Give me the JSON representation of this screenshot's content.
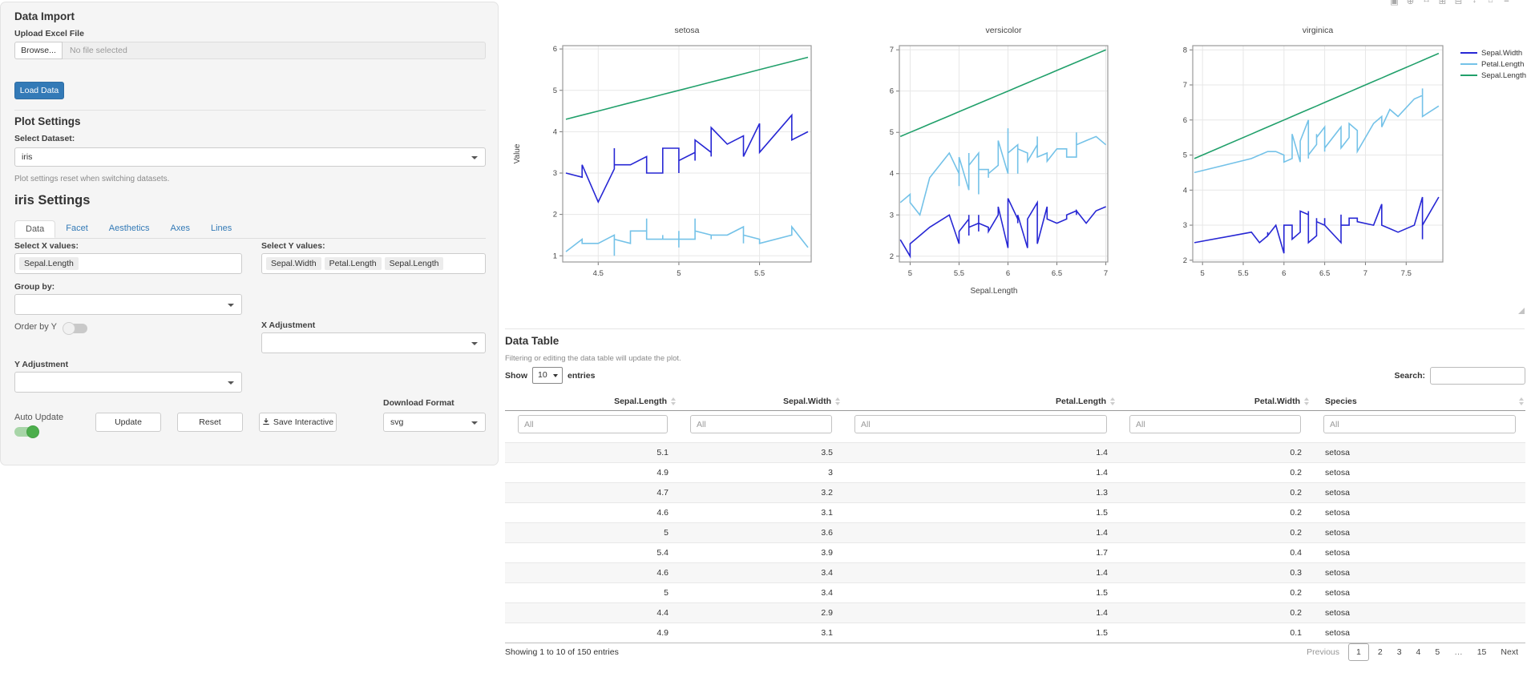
{
  "sidebar": {
    "data_import": {
      "title": "Data Import",
      "upload_label": "Upload Excel File",
      "browse_button": "Browse...",
      "file_status": "No file selected",
      "load_button": "Load Data"
    },
    "plot_settings": {
      "title": "Plot Settings",
      "dataset_label": "Select Dataset:",
      "dataset_value": "iris",
      "hint": "Plot settings reset when switching datasets."
    },
    "settings_panel": {
      "title": "iris Settings",
      "tabs": [
        "Data",
        "Facet",
        "Aesthetics",
        "Axes",
        "Lines"
      ],
      "active_tab": "Data",
      "select_x_label": "Select X values:",
      "x_values": [
        "Sepal.Length"
      ],
      "select_y_label": "Select Y values:",
      "y_values": [
        "Sepal.Width",
        "Petal.Length",
        "Sepal.Length"
      ],
      "group_by_label": "Group by:",
      "group_by_value": "",
      "order_by_y_label": "Order by Y",
      "order_by_y_on": false,
      "x_adjustment_label": "X Adjustment",
      "x_adjustment_value": "",
      "y_adjustment_label": "Y Adjustment",
      "y_adjustment_value": "",
      "auto_update_label": "Auto Update",
      "auto_update_on": true,
      "update_button": "Update",
      "reset_button": "Reset",
      "save_button": "Save Interactive",
      "download_format_label": "Download Format",
      "download_format_value": "svg"
    }
  },
  "modebar_icons": [
    {
      "name": "camera-icon",
      "glyph": "▣"
    },
    {
      "name": "zoom-icon",
      "glyph": "⊕"
    },
    {
      "name": "pan-icon",
      "glyph": "↔"
    },
    {
      "name": "zoom-in-icon",
      "glyph": "⊞"
    },
    {
      "name": "zoom-out-icon",
      "glyph": "⊟"
    },
    {
      "name": "autoscale-icon",
      "glyph": "↕"
    },
    {
      "name": "reset-axes-icon",
      "glyph": "⌂"
    },
    {
      "name": "plotly-logo-icon",
      "glyph": "≡"
    }
  ],
  "chart_data": {
    "type": "line",
    "xlabel": "Sepal.Length",
    "ylabel": "Value",
    "grid": true,
    "legend_position": "right-outside-top",
    "facet_titles": [
      "setosa",
      "versicolor",
      "virginica"
    ],
    "point_columns": [
      "Sepal.Length",
      "Sepal.Width",
      "Petal.Length"
    ],
    "series": [
      {
        "name": "Sepal.Width",
        "color": "#2727d4",
        "col": 1
      },
      {
        "name": "Petal.Length",
        "color": "#74c2e8",
        "col": 2
      },
      {
        "name": "Sepal.Length",
        "color": "#21a06b",
        "col": 0
      }
    ],
    "facets": [
      {
        "title": "setosa",
        "x_range": [
          4.28,
          5.82
        ],
        "y_range": [
          0.85,
          6.08
        ],
        "x_ticks": [
          4.5,
          5,
          5.5
        ],
        "y_ticks": [
          1,
          2,
          3,
          4,
          5,
          6
        ],
        "points": [
          [
            5.1,
            3.5,
            1.4
          ],
          [
            4.9,
            3.0,
            1.4
          ],
          [
            4.7,
            3.2,
            1.3
          ],
          [
            4.6,
            3.1,
            1.5
          ],
          [
            5.0,
            3.6,
            1.4
          ],
          [
            5.4,
            3.9,
            1.7
          ],
          [
            4.6,
            3.4,
            1.4
          ],
          [
            5.0,
            3.4,
            1.5
          ],
          [
            4.4,
            2.9,
            1.4
          ],
          [
            4.9,
            3.1,
            1.5
          ],
          [
            5.4,
            3.7,
            1.5
          ],
          [
            4.8,
            3.4,
            1.6
          ],
          [
            4.8,
            3.0,
            1.4
          ],
          [
            4.3,
            3.0,
            1.1
          ],
          [
            5.8,
            4.0,
            1.2
          ],
          [
            5.7,
            4.4,
            1.5
          ],
          [
            5.4,
            3.9,
            1.3
          ],
          [
            5.1,
            3.5,
            1.4
          ],
          [
            5.7,
            3.8,
            1.7
          ],
          [
            5.1,
            3.8,
            1.5
          ],
          [
            5.4,
            3.4,
            1.7
          ],
          [
            5.1,
            3.7,
            1.5
          ],
          [
            4.6,
            3.6,
            1.0
          ],
          [
            5.1,
            3.3,
            1.7
          ],
          [
            4.8,
            3.4,
            1.9
          ],
          [
            5.0,
            3.0,
            1.6
          ],
          [
            5.0,
            3.4,
            1.6
          ],
          [
            5.2,
            3.5,
            1.5
          ],
          [
            5.2,
            3.4,
            1.4
          ],
          [
            4.7,
            3.2,
            1.6
          ],
          [
            4.8,
            3.1,
            1.6
          ],
          [
            5.4,
            3.4,
            1.5
          ],
          [
            5.2,
            4.1,
            1.5
          ],
          [
            5.5,
            4.2,
            1.4
          ],
          [
            4.9,
            3.1,
            1.5
          ],
          [
            5.0,
            3.2,
            1.2
          ],
          [
            5.5,
            3.5,
            1.3
          ],
          [
            4.9,
            3.6,
            1.4
          ],
          [
            4.4,
            3.0,
            1.3
          ],
          [
            5.1,
            3.4,
            1.5
          ],
          [
            5.0,
            3.5,
            1.3
          ],
          [
            4.5,
            2.3,
            1.3
          ],
          [
            4.4,
            3.2,
            1.3
          ],
          [
            5.0,
            3.5,
            1.6
          ],
          [
            5.1,
            3.8,
            1.9
          ],
          [
            4.8,
            3.0,
            1.4
          ],
          [
            5.1,
            3.8,
            1.6
          ],
          [
            4.6,
            3.2,
            1.4
          ],
          [
            5.3,
            3.7,
            1.5
          ],
          [
            5.0,
            3.3,
            1.4
          ]
        ]
      },
      {
        "title": "versicolor",
        "x_range": [
          4.89,
          7.02
        ],
        "y_range": [
          1.86,
          7.1
        ],
        "x_ticks": [
          5,
          5.5,
          6,
          6.5,
          7
        ],
        "y_ticks": [
          2,
          3,
          4,
          5,
          6,
          7
        ],
        "points": [
          [
            7.0,
            3.2,
            4.7
          ],
          [
            6.4,
            3.2,
            4.5
          ],
          [
            6.9,
            3.1,
            4.9
          ],
          [
            5.5,
            2.3,
            4.0
          ],
          [
            6.5,
            2.8,
            4.6
          ],
          [
            5.7,
            2.8,
            4.5
          ],
          [
            6.3,
            3.3,
            4.7
          ],
          [
            4.9,
            2.4,
            3.3
          ],
          [
            6.6,
            2.9,
            4.6
          ],
          [
            5.2,
            2.7,
            3.9
          ],
          [
            5.0,
            2.0,
            3.5
          ],
          [
            5.9,
            3.0,
            4.2
          ],
          [
            6.0,
            2.2,
            4.0
          ],
          [
            6.1,
            2.9,
            4.7
          ],
          [
            5.6,
            2.9,
            3.6
          ],
          [
            6.7,
            3.1,
            4.4
          ],
          [
            5.6,
            3.0,
            4.5
          ],
          [
            5.8,
            2.7,
            4.1
          ],
          [
            6.2,
            2.2,
            4.5
          ],
          [
            5.6,
            2.5,
            3.9
          ],
          [
            5.9,
            3.2,
            4.8
          ],
          [
            6.1,
            2.8,
            4.0
          ],
          [
            6.3,
            2.5,
            4.9
          ],
          [
            6.1,
            2.8,
            4.7
          ],
          [
            6.4,
            2.9,
            4.3
          ],
          [
            6.6,
            3.0,
            4.4
          ],
          [
            6.8,
            2.8,
            4.8
          ],
          [
            6.7,
            3.0,
            5.0
          ],
          [
            6.0,
            2.9,
            4.5
          ],
          [
            5.7,
            2.6,
            3.5
          ],
          [
            5.5,
            2.4,
            3.8
          ],
          [
            5.5,
            2.4,
            3.7
          ],
          [
            5.8,
            2.7,
            3.9
          ],
          [
            6.0,
            2.7,
            5.1
          ],
          [
            5.4,
            3.0,
            4.5
          ],
          [
            6.0,
            3.4,
            4.5
          ],
          [
            6.7,
            3.1,
            4.7
          ],
          [
            6.3,
            2.3,
            4.4
          ],
          [
            5.6,
            3.0,
            4.1
          ],
          [
            5.5,
            2.5,
            4.0
          ],
          [
            5.5,
            2.6,
            4.4
          ],
          [
            6.1,
            3.0,
            4.6
          ],
          [
            5.8,
            2.6,
            4.0
          ],
          [
            5.0,
            2.3,
            3.3
          ],
          [
            5.6,
            2.7,
            4.2
          ],
          [
            5.7,
            3.0,
            4.2
          ],
          [
            5.7,
            2.9,
            4.2
          ],
          [
            6.2,
            2.9,
            4.3
          ],
          [
            5.1,
            2.5,
            3.0
          ],
          [
            5.7,
            2.8,
            4.1
          ]
        ]
      },
      {
        "title": "virginica",
        "x_range": [
          4.88,
          7.95
        ],
        "y_range": [
          1.95,
          8.12
        ],
        "x_ticks": [
          5,
          5.5,
          6,
          6.5,
          7,
          7.5
        ],
        "y_ticks": [
          2,
          3,
          4,
          5,
          6,
          7,
          8
        ],
        "points": [
          [
            6.3,
            3.3,
            6.0
          ],
          [
            5.8,
            2.7,
            5.1
          ],
          [
            7.1,
            3.0,
            5.9
          ],
          [
            6.3,
            2.9,
            5.6
          ],
          [
            6.5,
            3.0,
            5.8
          ],
          [
            7.6,
            3.0,
            6.6
          ],
          [
            4.9,
            2.5,
            4.5
          ],
          [
            7.3,
            2.9,
            6.3
          ],
          [
            6.7,
            2.5,
            5.8
          ],
          [
            7.2,
            3.6,
            6.1
          ],
          [
            6.5,
            3.2,
            5.1
          ],
          [
            6.4,
            2.7,
            5.3
          ],
          [
            6.8,
            3.0,
            5.5
          ],
          [
            5.7,
            2.5,
            5.0
          ],
          [
            5.8,
            2.8,
            5.1
          ],
          [
            6.4,
            3.2,
            5.3
          ],
          [
            6.5,
            3.0,
            5.5
          ],
          [
            7.7,
            3.8,
            6.7
          ],
          [
            7.7,
            2.6,
            6.9
          ],
          [
            6.0,
            2.2,
            5.0
          ],
          [
            6.9,
            3.2,
            5.7
          ],
          [
            5.6,
            2.8,
            4.9
          ],
          [
            7.7,
            2.8,
            6.7
          ],
          [
            6.3,
            2.7,
            4.9
          ],
          [
            6.7,
            3.3,
            5.7
          ],
          [
            7.2,
            3.2,
            6.0
          ],
          [
            6.2,
            2.8,
            4.8
          ],
          [
            6.1,
            3.0,
            4.9
          ],
          [
            6.4,
            2.8,
            5.6
          ],
          [
            7.2,
            3.0,
            5.8
          ],
          [
            7.4,
            2.8,
            6.1
          ],
          [
            7.9,
            3.8,
            6.4
          ],
          [
            6.4,
            2.8,
            5.6
          ],
          [
            6.3,
            2.8,
            5.1
          ],
          [
            6.1,
            2.6,
            5.6
          ],
          [
            7.7,
            3.0,
            6.1
          ],
          [
            6.3,
            3.4,
            5.6
          ],
          [
            6.4,
            3.1,
            5.5
          ],
          [
            6.0,
            3.0,
            4.8
          ],
          [
            6.9,
            3.1,
            5.4
          ],
          [
            6.7,
            3.1,
            5.6
          ],
          [
            6.9,
            3.1,
            5.1
          ],
          [
            5.8,
            2.7,
            5.1
          ],
          [
            6.8,
            3.2,
            5.9
          ],
          [
            6.7,
            3.3,
            5.7
          ],
          [
            6.7,
            3.0,
            5.2
          ],
          [
            6.3,
            2.5,
            5.0
          ],
          [
            6.5,
            3.0,
            5.2
          ],
          [
            6.2,
            3.4,
            5.4
          ],
          [
            5.9,
            3.0,
            5.1
          ]
        ]
      }
    ]
  },
  "table": {
    "title": "Data Table",
    "hint": "Filtering or editing the data table will update the plot.",
    "show_label": "Show",
    "page_length": "10",
    "entries_label": "entries",
    "search_label": "Search:",
    "search_value": "",
    "columns": [
      {
        "label": "Sepal.Length",
        "align": "right"
      },
      {
        "label": "Sepal.Width",
        "align": "right"
      },
      {
        "label": "Petal.Length",
        "align": "right"
      },
      {
        "label": "Petal.Width",
        "align": "right"
      },
      {
        "label": "Species",
        "align": "left"
      }
    ],
    "filter_placeholder": "All",
    "rows": [
      [
        "5.1",
        "3.5",
        "1.4",
        "0.2",
        "setosa"
      ],
      [
        "4.9",
        "3",
        "1.4",
        "0.2",
        "setosa"
      ],
      [
        "4.7",
        "3.2",
        "1.3",
        "0.2",
        "setosa"
      ],
      [
        "4.6",
        "3.1",
        "1.5",
        "0.2",
        "setosa"
      ],
      [
        "5",
        "3.6",
        "1.4",
        "0.2",
        "setosa"
      ],
      [
        "5.4",
        "3.9",
        "1.7",
        "0.4",
        "setosa"
      ],
      [
        "4.6",
        "3.4",
        "1.4",
        "0.3",
        "setosa"
      ],
      [
        "5",
        "3.4",
        "1.5",
        "0.2",
        "setosa"
      ],
      [
        "4.4",
        "2.9",
        "1.4",
        "0.2",
        "setosa"
      ],
      [
        "4.9",
        "3.1",
        "1.5",
        "0.1",
        "setosa"
      ]
    ],
    "info": "Showing 1 to 10 of 150 entries",
    "pagination": {
      "previous_label": "Previous",
      "pages": [
        "1",
        "2",
        "3",
        "4",
        "5",
        "…",
        "15"
      ],
      "active_page": "1",
      "next_label": "Next"
    }
  }
}
